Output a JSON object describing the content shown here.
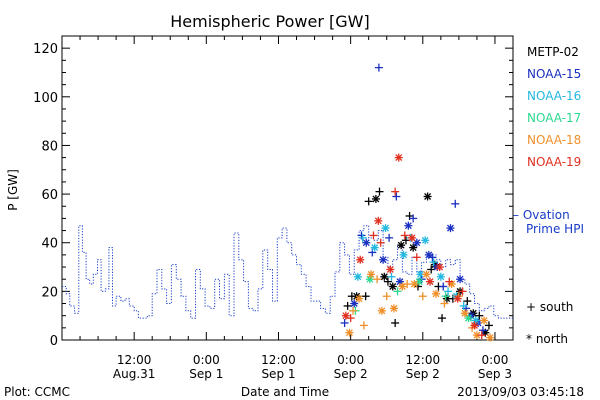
{
  "chart_data": {
    "type": "scatter",
    "title": "Hemispheric Power [GW]",
    "ylabel": "P [GW]",
    "xlabel": "Date and Time",
    "ylim": [
      0,
      125
    ],
    "xlim": [
      -6,
      69
    ],
    "yticks": [
      0,
      20,
      40,
      60,
      80,
      100,
      120
    ],
    "xticks": [
      {
        "x": 6,
        "time": "12:00",
        "date": "Aug.31"
      },
      {
        "x": 18,
        "time": "0:00",
        "date": "Sep 1"
      },
      {
        "x": 30,
        "time": "12:00",
        "date": "Sep 1"
      },
      {
        "x": 42,
        "time": "0:00",
        "date": "Sep 2"
      },
      {
        "x": 54,
        "time": "12:00",
        "date": "Sep 2"
      },
      {
        "x": 66,
        "time": "0:00",
        "date": "Sep 3"
      }
    ],
    "x_units": "hours after 2013-08-31 00:00 UT",
    "grid": false,
    "legend_position": "right",
    "ovation": {
      "name": "Ovation Prime HPI",
      "color": "#1a3cc8",
      "style": "dotted-step",
      "x": [
        -6,
        -5.3,
        -4.7,
        -3.9,
        -3.2,
        -2.6,
        -2.0,
        -1.4,
        -0.8,
        -0.1,
        0.5,
        1.2,
        1.8,
        2.4,
        3.0,
        3.8,
        4.5,
        5.2,
        6.0,
        6.7,
        7.4,
        8.2,
        9.0,
        9.8,
        10.6,
        11.4,
        12.2,
        13.0,
        13.8,
        14.6,
        15.4,
        16.2,
        17.0,
        17.8,
        18.6,
        19.4,
        20.2,
        21.0,
        21.8,
        22.6,
        23.4,
        24.2,
        25.0,
        25.8,
        26.6,
        27.4,
        28.2,
        29.0,
        29.8,
        30.6,
        31.4,
        32.2,
        33.0,
        33.8,
        34.6,
        35.4,
        36.2,
        37.0,
        37.8,
        38.6,
        39.4,
        40.2,
        41.0,
        41.8,
        42.6,
        43.4,
        44.2,
        45.0,
        45.8,
        46.6,
        47.4,
        48.2,
        49.0,
        49.8,
        50.6,
        51.4,
        52.2,
        53.0,
        53.8,
        54.6,
        55.4,
        56.2,
        57.0,
        57.8,
        58.6,
        59.4,
        60.2,
        61.0,
        61.8,
        62.6,
        63.4,
        64.2,
        65.0,
        65.8,
        66.6,
        67.4,
        68.2
      ],
      "y": [
        22,
        19,
        14,
        11,
        47,
        36,
        25,
        23,
        27,
        33,
        20,
        21,
        38,
        14,
        18,
        16,
        17,
        14,
        12,
        9,
        9,
        10,
        19,
        29,
        21,
        15,
        31,
        25,
        18,
        12,
        9,
        29,
        21,
        14,
        13,
        25,
        17,
        27,
        10,
        44,
        33,
        24,
        13,
        12,
        21,
        37,
        29,
        16,
        42,
        46,
        40,
        35,
        31,
        27,
        22,
        16,
        16,
        13,
        11,
        18,
        28,
        40,
        35,
        27,
        37,
        45,
        47,
        42,
        41,
        45,
        34,
        30,
        33,
        39,
        28,
        27,
        34,
        28,
        32,
        34,
        35,
        33,
        30,
        33,
        31,
        33,
        25,
        23,
        19,
        15,
        12,
        13,
        14,
        10,
        9,
        9,
        9
      ]
    },
    "series": [
      {
        "name": "METP-02",
        "color": "#000000",
        "points": [
          {
            "x": 41.5,
            "y": 14,
            "m": "+"
          },
          {
            "x": 42.2,
            "y": 18,
            "m": "+"
          },
          {
            "x": 43.0,
            "y": 18,
            "m": "*"
          },
          {
            "x": 44.5,
            "y": 18,
            "m": "+"
          },
          {
            "x": 45.0,
            "y": 57,
            "m": "+"
          },
          {
            "x": 46.2,
            "y": 58,
            "m": "*"
          },
          {
            "x": 46.8,
            "y": 61,
            "m": "+"
          },
          {
            "x": 47.6,
            "y": 26,
            "m": "*"
          },
          {
            "x": 48.2,
            "y": 24,
            "m": "+"
          },
          {
            "x": 49.0,
            "y": 22,
            "m": "*"
          },
          {
            "x": 49.4,
            "y": 7,
            "m": "+"
          },
          {
            "x": 50.4,
            "y": 39,
            "m": "*"
          },
          {
            "x": 51.2,
            "y": 41,
            "m": "+"
          },
          {
            "x": 51.8,
            "y": 51,
            "m": "+"
          },
          {
            "x": 52.4,
            "y": 38,
            "m": "*"
          },
          {
            "x": 53.2,
            "y": 22,
            "m": "+"
          },
          {
            "x": 54.8,
            "y": 59,
            "m": "*"
          },
          {
            "x": 55.4,
            "y": 29,
            "m": "+"
          },
          {
            "x": 56.0,
            "y": 31,
            "m": "*"
          },
          {
            "x": 56.6,
            "y": 22,
            "m": "+"
          },
          {
            "x": 57.2,
            "y": 9,
            "m": "+"
          },
          {
            "x": 58.0,
            "y": 17,
            "m": "*"
          },
          {
            "x": 59.0,
            "y": 17,
            "m": "+"
          },
          {
            "x": 60.2,
            "y": 20,
            "m": "*"
          },
          {
            "x": 61.4,
            "y": 16,
            "m": "+"
          },
          {
            "x": 62.4,
            "y": 11,
            "m": "*"
          },
          {
            "x": 63.4,
            "y": 10,
            "m": "+"
          },
          {
            "x": 64.4,
            "y": 3,
            "m": "*"
          },
          {
            "x": 65.0,
            "y": 6,
            "m": "+"
          }
        ]
      },
      {
        "name": "NOAA-15",
        "color": "#1a30c0",
        "points": [
          {
            "x": 41.0,
            "y": 7,
            "m": "+"
          },
          {
            "x": 42.6,
            "y": 15,
            "m": "*"
          },
          {
            "x": 43.8,
            "y": 43,
            "m": "+"
          },
          {
            "x": 44.6,
            "y": 40,
            "m": "*"
          },
          {
            "x": 45.6,
            "y": 36,
            "m": "+"
          },
          {
            "x": 46.7,
            "y": 112,
            "m": "+"
          },
          {
            "x": 47.4,
            "y": 33,
            "m": "*"
          },
          {
            "x": 48.4,
            "y": 42,
            "m": "+"
          },
          {
            "x": 49.6,
            "y": 59,
            "m": "+"
          },
          {
            "x": 50.2,
            "y": 24,
            "m": "*"
          },
          {
            "x": 51.6,
            "y": 47,
            "m": "*"
          },
          {
            "x": 52.4,
            "y": 50,
            "m": "+"
          },
          {
            "x": 53.0,
            "y": 40,
            "m": "*"
          },
          {
            "x": 53.8,
            "y": 25,
            "m": "+"
          },
          {
            "x": 55.0,
            "y": 35,
            "m": "*"
          },
          {
            "x": 55.6,
            "y": 34,
            "m": "+"
          },
          {
            "x": 56.4,
            "y": 30,
            "m": "*"
          },
          {
            "x": 57.4,
            "y": 22,
            "m": "+"
          },
          {
            "x": 58.6,
            "y": 46,
            "m": "*"
          },
          {
            "x": 59.4,
            "y": 56,
            "m": "+"
          },
          {
            "x": 60.2,
            "y": 25,
            "m": "*"
          },
          {
            "x": 61.2,
            "y": 13,
            "m": "+"
          },
          {
            "x": 62.0,
            "y": 10,
            "m": "*"
          },
          {
            "x": 63.2,
            "y": 7,
            "m": "*"
          },
          {
            "x": 64.0,
            "y": 4,
            "m": "+"
          }
        ]
      },
      {
        "name": "NOAA-16",
        "color": "#22b8e0",
        "points": [
          {
            "x": 43.2,
            "y": 26,
            "m": "*"
          },
          {
            "x": 44.0,
            "y": 42,
            "m": "+"
          },
          {
            "x": 46.0,
            "y": 38,
            "m": "*"
          },
          {
            "x": 47.8,
            "y": 46,
            "m": "*"
          },
          {
            "x": 48.8,
            "y": 26,
            "m": "+"
          },
          {
            "x": 50.8,
            "y": 35,
            "m": "*"
          },
          {
            "x": 52.0,
            "y": 42,
            "m": "+"
          },
          {
            "x": 53.6,
            "y": 27,
            "m": "*"
          },
          {
            "x": 54.4,
            "y": 41,
            "m": "*"
          },
          {
            "x": 55.8,
            "y": 32,
            "m": "+"
          },
          {
            "x": 57.0,
            "y": 26,
            "m": "*"
          },
          {
            "x": 58.2,
            "y": 20,
            "m": "+"
          },
          {
            "x": 59.6,
            "y": 18,
            "m": "*"
          },
          {
            "x": 60.8,
            "y": 14,
            "m": "+"
          },
          {
            "x": 62.8,
            "y": 8,
            "m": "*"
          }
        ]
      },
      {
        "name": "NOAA-17",
        "color": "#2ad890",
        "points": [
          {
            "x": 42.8,
            "y": 12,
            "m": "+"
          },
          {
            "x": 45.2,
            "y": 25,
            "m": "*"
          },
          {
            "x": 49.8,
            "y": 20,
            "m": "+"
          },
          {
            "x": 53.4,
            "y": 24,
            "m": "*"
          },
          {
            "x": 57.8,
            "y": 18,
            "m": "+"
          },
          {
            "x": 61.6,
            "y": 9,
            "m": "*"
          }
        ]
      },
      {
        "name": "NOAA-18",
        "color": "#f0902a",
        "points": [
          {
            "x": 41.8,
            "y": 3,
            "m": "*"
          },
          {
            "x": 42.4,
            "y": 12,
            "m": "+"
          },
          {
            "x": 43.4,
            "y": 17,
            "m": "*"
          },
          {
            "x": 44.2,
            "y": 6,
            "m": "+"
          },
          {
            "x": 45.4,
            "y": 27,
            "m": "*"
          },
          {
            "x": 46.4,
            "y": 25,
            "m": "+"
          },
          {
            "x": 47.2,
            "y": 12,
            "m": "*"
          },
          {
            "x": 48.0,
            "y": 18,
            "m": "+"
          },
          {
            "x": 49.2,
            "y": 13,
            "m": "*"
          },
          {
            "x": 50.6,
            "y": 22,
            "m": "*"
          },
          {
            "x": 51.4,
            "y": 23,
            "m": "+"
          },
          {
            "x": 52.6,
            "y": 23,
            "m": "*"
          },
          {
            "x": 54.0,
            "y": 18,
            "m": "+"
          },
          {
            "x": 54.6,
            "y": 27,
            "m": "*"
          },
          {
            "x": 56.2,
            "y": 19,
            "m": "*"
          },
          {
            "x": 57.6,
            "y": 15,
            "m": "+"
          },
          {
            "x": 58.8,
            "y": 23,
            "m": "*"
          },
          {
            "x": 60.0,
            "y": 18,
            "m": "+"
          },
          {
            "x": 61.0,
            "y": 11,
            "m": "*"
          },
          {
            "x": 62.2,
            "y": 5,
            "m": "+"
          },
          {
            "x": 63.0,
            "y": 2,
            "m": "*"
          },
          {
            "x": 64.2,
            "y": 8,
            "m": "*"
          },
          {
            "x": 65.2,
            "y": 1,
            "m": "*"
          }
        ]
      },
      {
        "name": "NOAA-19",
        "color": "#e03020",
        "points": [
          {
            "x": 41.2,
            "y": 10,
            "m": "*"
          },
          {
            "x": 42.0,
            "y": 9,
            "m": "+"
          },
          {
            "x": 43.6,
            "y": 33,
            "m": "*"
          },
          {
            "x": 45.8,
            "y": 43,
            "m": "+"
          },
          {
            "x": 46.6,
            "y": 49,
            "m": "*"
          },
          {
            "x": 47.0,
            "y": 40,
            "m": "+"
          },
          {
            "x": 48.6,
            "y": 29,
            "m": "*"
          },
          {
            "x": 49.4,
            "y": 61,
            "m": "+"
          },
          {
            "x": 50.0,
            "y": 75,
            "m": "*"
          },
          {
            "x": 51.0,
            "y": 43,
            "m": "+"
          },
          {
            "x": 52.2,
            "y": 42,
            "m": "*"
          },
          {
            "x": 53.0,
            "y": 34,
            "m": "+"
          },
          {
            "x": 55.2,
            "y": 24,
            "m": "*"
          },
          {
            "x": 56.8,
            "y": 30,
            "m": "*"
          },
          {
            "x": 58.4,
            "y": 24,
            "m": "+"
          },
          {
            "x": 59.8,
            "y": 17,
            "m": "*"
          },
          {
            "x": 60.6,
            "y": 20,
            "m": "+"
          },
          {
            "x": 62.6,
            "y": 6,
            "m": "*"
          },
          {
            "x": 63.8,
            "y": 2,
            "m": "+"
          }
        ]
      }
    ]
  },
  "legend": {
    "satellites": [
      {
        "label": "METP-02",
        "color": "#000000"
      },
      {
        "label": "NOAA-15",
        "color": "#1a30c0"
      },
      {
        "label": "NOAA-16",
        "color": "#22b8e0"
      },
      {
        "label": "NOAA-17",
        "color": "#2ad890"
      },
      {
        "label": "NOAA-18",
        "color": "#f0902a"
      },
      {
        "label": "NOAA-19",
        "color": "#e03020"
      }
    ],
    "ovation_line1": "– Ovation",
    "ovation_line2": "Prime HPI",
    "south_label": "+ south",
    "north_label": "* north"
  },
  "footer": {
    "plot_credit": "Plot: CCMC",
    "timestamp": "2013/09/03 03:45:18"
  }
}
